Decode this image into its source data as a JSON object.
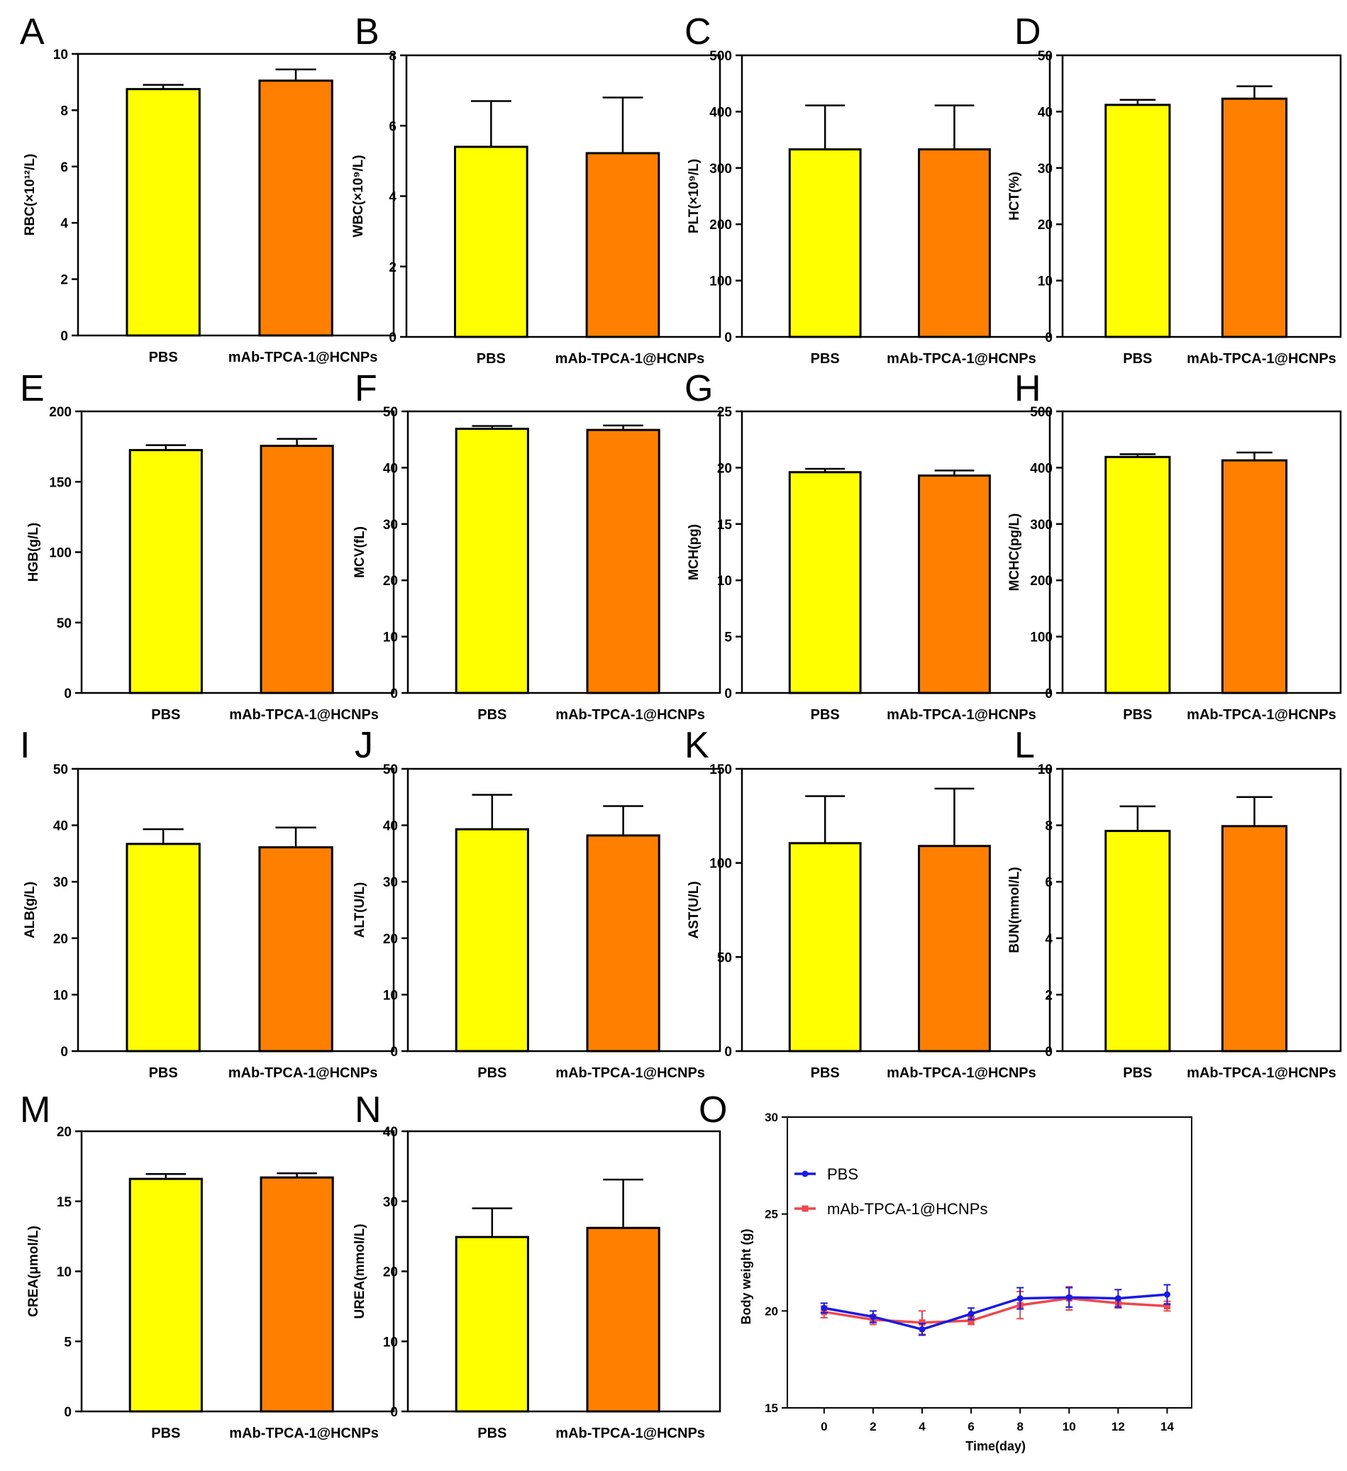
{
  "colors": {
    "pbs_bar": "#ffff00",
    "treatment_bar": "#ff8000",
    "pbs_line": "#1a1ae6",
    "treatment_line": "#f0474c",
    "axis": "#000000"
  },
  "chart_data": [
    {
      "id": "A",
      "type": "bar",
      "letter": "A",
      "ylabel": "RBC(×10¹²/L)",
      "ylim": [
        0,
        10
      ],
      "yticks": [
        0,
        2,
        4,
        6,
        8,
        10
      ],
      "categories": [
        "PBS",
        "mAb-TPCA-1@HCNPs"
      ],
      "values": [
        8.75,
        9.05
      ],
      "errors": [
        0.15,
        0.4
      ]
    },
    {
      "id": "B",
      "type": "bar",
      "letter": "B",
      "ylabel": "WBC(×10⁹/L)",
      "ylim": [
        0,
        8
      ],
      "yticks": [
        0,
        2,
        4,
        6,
        8
      ],
      "categories": [
        "PBS",
        "mAb-TPCA-1@HCNPs"
      ],
      "values": [
        5.4,
        5.22
      ],
      "errors": [
        1.3,
        1.58
      ]
    },
    {
      "id": "C",
      "type": "bar",
      "letter": "C",
      "ylabel": "PLT(×10⁹/L)",
      "ylim": [
        0,
        500
      ],
      "yticks": [
        0,
        100,
        200,
        300,
        400,
        500
      ],
      "categories": [
        "PBS",
        "mAb-TPCA-1@HCNPs"
      ],
      "values": [
        333,
        333
      ],
      "errors": [
        78,
        78
      ]
    },
    {
      "id": "D",
      "type": "bar",
      "letter": "D",
      "ylabel": "HCT(%)",
      "ylim": [
        0,
        50
      ],
      "yticks": [
        0,
        10,
        20,
        30,
        40,
        50
      ],
      "categories": [
        "PBS",
        "mAb-TPCA-1@HCNPs"
      ],
      "values": [
        41.2,
        42.3
      ],
      "errors": [
        0.9,
        2.2
      ]
    },
    {
      "id": "E",
      "type": "bar",
      "letter": "E",
      "ylabel": "HGB(g/L)",
      "ylim": [
        0,
        200
      ],
      "yticks": [
        0,
        50,
        100,
        150,
        200
      ],
      "categories": [
        "PBS",
        "mAb-TPCA-1@HCNPs"
      ],
      "values": [
        172.5,
        175.5
      ],
      "errors": [
        3.5,
        5
      ]
    },
    {
      "id": "F",
      "type": "bar",
      "letter": "F",
      "ylabel": "MCV(fL)",
      "ylim": [
        0,
        50
      ],
      "yticks": [
        0,
        10,
        20,
        30,
        40,
        50
      ],
      "categories": [
        "PBS",
        "mAb-TPCA-1@HCNPs"
      ],
      "values": [
        46.9,
        46.7
      ],
      "errors": [
        0.5,
        0.8
      ]
    },
    {
      "id": "G",
      "type": "bar",
      "letter": "G",
      "ylabel": "MCH(pg)",
      "ylim": [
        0,
        25
      ],
      "yticks": [
        0,
        5,
        10,
        15,
        20,
        25
      ],
      "categories": [
        "PBS",
        "mAb-TPCA-1@HCNPs"
      ],
      "values": [
        19.6,
        19.3
      ],
      "errors": [
        0.3,
        0.45
      ]
    },
    {
      "id": "H",
      "type": "bar",
      "letter": "H",
      "ylabel": "MCHC(pg/L)",
      "ylim": [
        0,
        500
      ],
      "yticks": [
        0,
        100,
        200,
        300,
        400,
        500
      ],
      "categories": [
        "PBS",
        "mAb-TPCA-1@HCNPs"
      ],
      "values": [
        419,
        413
      ],
      "errors": [
        5,
        14
      ]
    },
    {
      "id": "I",
      "type": "bar",
      "letter": "I",
      "ylabel": "ALB(g/L)",
      "ylim": [
        0,
        50
      ],
      "yticks": [
        0,
        10,
        20,
        30,
        40,
        50
      ],
      "categories": [
        "PBS",
        "mAb-TPCA-1@HCNPs"
      ],
      "values": [
        36.7,
        36.1
      ],
      "errors": [
        2.6,
        3.5
      ]
    },
    {
      "id": "J",
      "type": "bar",
      "letter": "J",
      "ylabel": "ALT(U/L)",
      "ylim": [
        0,
        50
      ],
      "yticks": [
        0,
        10,
        20,
        30,
        40,
        50
      ],
      "categories": [
        "PBS",
        "mAb-TPCA-1@HCNPs"
      ],
      "values": [
        39.3,
        38.2
      ],
      "errors": [
        6.1,
        5.2
      ]
    },
    {
      "id": "K",
      "type": "bar",
      "letter": "K",
      "ylabel": "AST(U/L)",
      "ylim": [
        0,
        150
      ],
      "yticks": [
        0,
        50,
        100,
        150
      ],
      "categories": [
        "PBS",
        "mAb-TPCA-1@HCNPs"
      ],
      "values": [
        110.5,
        109
      ],
      "errors": [
        25,
        30.5
      ]
    },
    {
      "id": "L",
      "type": "bar",
      "letter": "L",
      "ylabel": "BUN(mmol/L)",
      "ylim": [
        0,
        10
      ],
      "yticks": [
        0,
        2,
        4,
        6,
        8,
        10
      ],
      "categories": [
        "PBS",
        "mAb-TPCA-1@HCNPs"
      ],
      "values": [
        7.8,
        7.97
      ],
      "errors": [
        0.87,
        1.03
      ]
    },
    {
      "id": "M",
      "type": "bar",
      "letter": "M",
      "ylabel": "CREA(μmol/L)",
      "ylim": [
        0,
        20
      ],
      "yticks": [
        0,
        5,
        10,
        15,
        20
      ],
      "categories": [
        "PBS",
        "mAb-TPCA-1@HCNPs"
      ],
      "values": [
        16.6,
        16.7
      ],
      "errors": [
        0.35,
        0.3
      ]
    },
    {
      "id": "N",
      "type": "bar",
      "letter": "N",
      "ylabel": "UREA(mmol/L)",
      "ylim": [
        0,
        40
      ],
      "yticks": [
        0,
        10,
        20,
        30,
        40
      ],
      "categories": [
        "PBS",
        "mAb-TPCA-1@HCNPs"
      ],
      "values": [
        24.9,
        26.2
      ],
      "errors": [
        4.1,
        6.9
      ]
    },
    {
      "id": "O",
      "type": "line",
      "letter": "O",
      "xlabel": "Time(day)",
      "ylabel": "Body weight (g)",
      "xlim": [
        -1.5,
        15
      ],
      "ylim": [
        15,
        30
      ],
      "xticks": [
        0,
        2,
        4,
        6,
        8,
        10,
        12,
        14
      ],
      "yticks": [
        15,
        20,
        25,
        30
      ],
      "series": [
        {
          "name": "PBS",
          "x": [
            0,
            2,
            4,
            6,
            8,
            10,
            12,
            14
          ],
          "y": [
            20.15,
            19.7,
            19.05,
            19.85,
            20.65,
            20.7,
            20.65,
            20.85
          ],
          "err": [
            0.25,
            0.3,
            0.3,
            0.3,
            0.55,
            0.5,
            0.45,
            0.5
          ]
        },
        {
          "name": "mAb-TPCA-1@HCNPs",
          "x": [
            0,
            2,
            4,
            6,
            8,
            10,
            12,
            14
          ],
          "y": [
            19.95,
            19.55,
            19.4,
            19.5,
            20.3,
            20.65,
            20.4,
            20.25
          ],
          "err": [
            0.3,
            0.25,
            0.6,
            0.2,
            0.7,
            0.6,
            0.25,
            0.25
          ]
        }
      ]
    }
  ]
}
